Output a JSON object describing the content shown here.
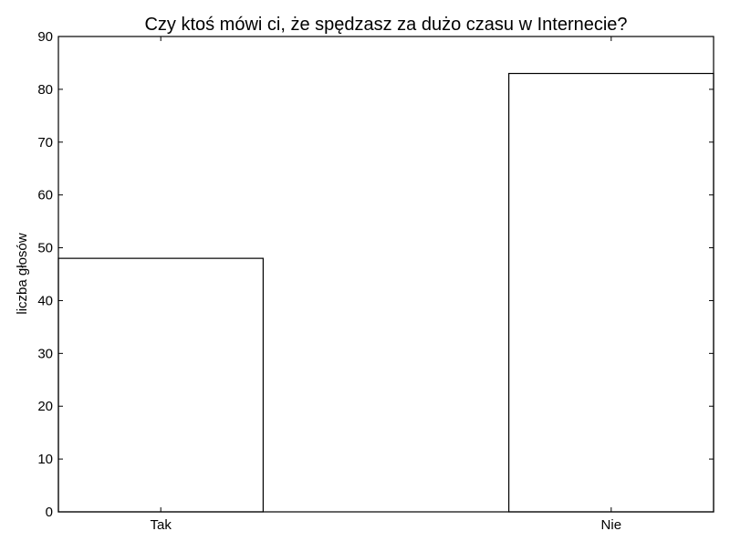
{
  "chart_data": {
    "type": "bar",
    "title": "Czy ktoś mówi ci, że spędzasz za dużo czasu w Internecie?",
    "xlabel": "",
    "ylabel": "liczba głosów",
    "categories": [
      "Tak",
      "Nie"
    ],
    "values": [
      48,
      83
    ],
    "ylim": [
      0,
      90
    ],
    "yticks": [
      0,
      10,
      20,
      30,
      40,
      50,
      60,
      70,
      80,
      90
    ],
    "ytick_labels": [
      "0",
      "10",
      "20",
      "30",
      "40",
      "50",
      "60",
      "70",
      "80",
      "90"
    ],
    "grid": false,
    "legend": "none",
    "colors": {
      "bar_fill": "#ffffff",
      "bar_edge": "#000000",
      "axes": "#000000",
      "background": "#ffffff"
    }
  }
}
